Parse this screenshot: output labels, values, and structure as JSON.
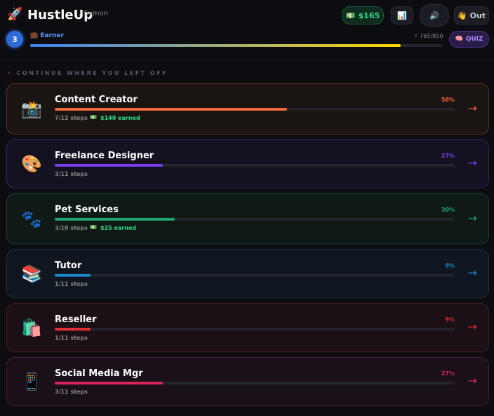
{
  "header": {
    "logo_icon": "🚀",
    "title": "HustleUp",
    "user": "/ Symon",
    "buttons": [
      {
        "icon": "💵",
        "label": "$165"
      },
      {
        "icon": "📊"
      },
      {
        "icon": "🔊"
      },
      {
        "icon": "👋",
        "label": "Out"
      }
    ]
  },
  "level": {
    "number": "3",
    "rank_icon": "💼",
    "rank": "Earner",
    "xp_icon": "⚡",
    "xp": {
      "value": 765,
      "max": 850,
      "label": "765/850"
    },
    "quiz_icon": "🧠",
    "quiz": "QUIZ"
  },
  "section": {
    "icon": "⚡",
    "title": "CONTINUE WHERE YOU LEFT OFF"
  },
  "cards": [
    {
      "icon": "📸",
      "title": "Content Creator",
      "progress": {
        "value": 58,
        "label": "58%"
      },
      "steps": "7/12 steps",
      "earned_icon": "💵",
      "earned": "$140 earned",
      "color": "#f26a3a",
      "bg": "#1a1412",
      "border": "#5a3224"
    },
    {
      "icon": "🎨",
      "title": "Freelance Designer",
      "progress": {
        "value": 27,
        "label": "27%"
      },
      "steps": "3/11 steps",
      "color": "#7b3ff2",
      "bg": "#141220",
      "border": "#302858"
    },
    {
      "icon": "🐾",
      "title": "Pet Services",
      "progress": {
        "value": 30,
        "label": "30%"
      },
      "steps": "3/10 steps",
      "earned_icon": "💵",
      "earned": "$25 earned",
      "color": "#1fa870",
      "bg": "#0f1a17",
      "border": "#1d3e34"
    },
    {
      "icon": "📚",
      "title": "Tutor",
      "progress": {
        "value": 9,
        "label": "9%"
      },
      "steps": "1/11 steps",
      "color": "#1a8ad4",
      "bg": "#0f1620",
      "border": "#1d3449"
    },
    {
      "icon": "🛍️",
      "title": "Reseller",
      "progress": {
        "value": 9,
        "label": "9%"
      },
      "steps": "1/11 steps",
      "color": "#e0303a",
      "bg": "#1a1015",
      "border": "#4a1d25"
    },
    {
      "icon": "📱",
      "title": "Social Media Mgr",
      "progress": {
        "value": 27,
        "label": "27%"
      },
      "steps": "3/11 steps",
      "color": "#d8265c",
      "bg": "#1a1019",
      "border": "#4a1d34"
    }
  ],
  "arrow": "→"
}
